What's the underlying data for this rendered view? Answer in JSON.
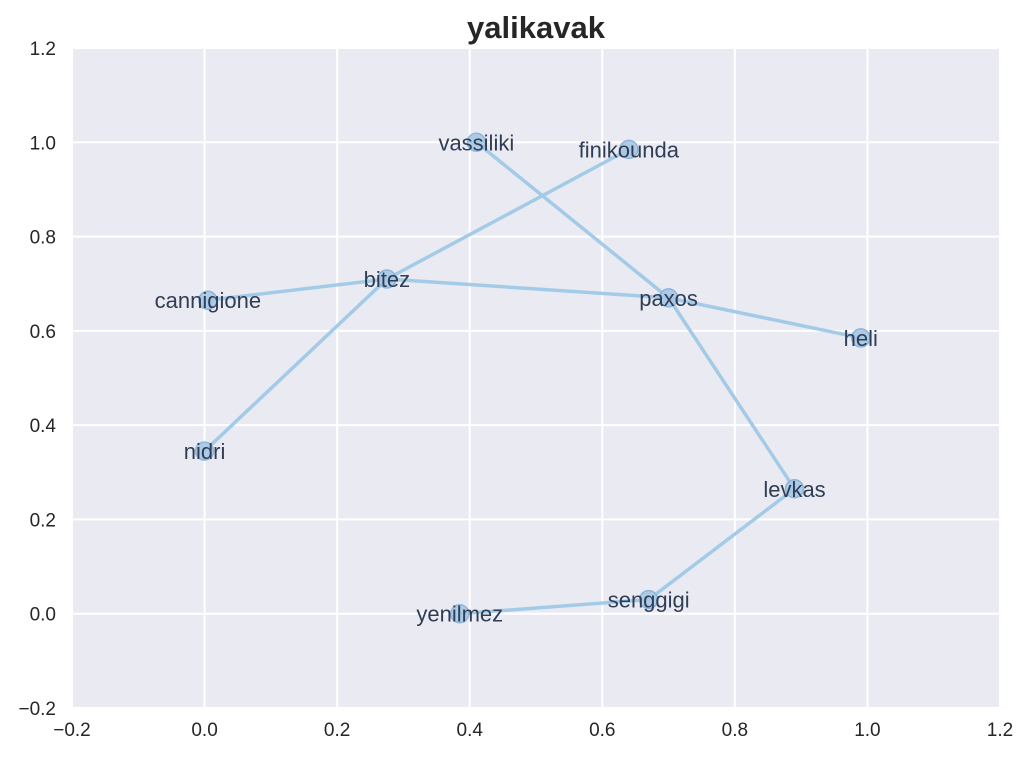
{
  "chart_data": {
    "type": "line",
    "title": "yalikavak",
    "xlabel": "",
    "ylabel": "",
    "xlim": [
      -0.2,
      1.2
    ],
    "ylim": [
      -0.2,
      1.2
    ],
    "xticks": [
      "−0.2",
      "0.0",
      "0.2",
      "0.4",
      "0.6",
      "0.8",
      "1.0",
      "1.2"
    ],
    "yticks": [
      "−0.2",
      "0.0",
      "0.2",
      "0.4",
      "0.6",
      "0.8",
      "1.0",
      "1.2"
    ],
    "grid": true,
    "colors": {
      "background": "#eaeaf2",
      "grid": "#ffffff",
      "line": "#a3cbe8",
      "marker_fill": "#a6c8e6",
      "marker_edge": "#8fb6da",
      "label_text": "#2f3d55"
    },
    "points": [
      {
        "name": "vassiliki",
        "x": 0.41,
        "y": 1.0
      },
      {
        "name": "finikounda",
        "x": 0.64,
        "y": 0.985
      },
      {
        "name": "bitez",
        "x": 0.275,
        "y": 0.71
      },
      {
        "name": "cannigione",
        "x": 0.005,
        "y": 0.665
      },
      {
        "name": "paxos",
        "x": 0.7,
        "y": 0.67
      },
      {
        "name": "heli",
        "x": 0.99,
        "y": 0.585
      },
      {
        "name": "nidri",
        "x": 0.0,
        "y": 0.345
      },
      {
        "name": "levkas",
        "x": 0.89,
        "y": 0.265
      },
      {
        "name": "senggigi",
        "x": 0.67,
        "y": 0.03
      },
      {
        "name": "yenilmez",
        "x": 0.385,
        "y": 0.0
      }
    ],
    "edges": [
      [
        "vassiliki",
        "paxos"
      ],
      [
        "paxos",
        "heli"
      ],
      [
        "paxos",
        "bitez"
      ],
      [
        "paxos",
        "levkas"
      ],
      [
        "levkas",
        "senggigi"
      ],
      [
        "senggigi",
        "yenilmez"
      ],
      [
        "bitez",
        "cannigione"
      ],
      [
        "bitez",
        "finikounda"
      ],
      [
        "bitez",
        "nidri"
      ]
    ]
  }
}
